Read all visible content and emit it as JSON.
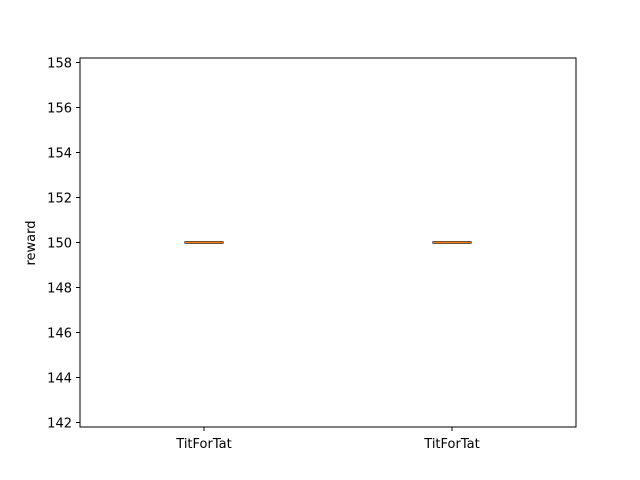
{
  "chart_data": {
    "type": "box",
    "title": "",
    "xlabel": "",
    "ylabel": "reward",
    "ylim": [
      141.8,
      158.2
    ],
    "yticks": [
      142,
      144,
      146,
      148,
      150,
      152,
      154,
      156,
      158
    ],
    "ytick_labels": [
      "142",
      "144",
      "146",
      "148",
      "150",
      "152",
      "154",
      "156",
      "158"
    ],
    "categories": [
      "TitForTat",
      "TitForTat"
    ],
    "boxes": [
      {
        "min": 150,
        "q1": 150,
        "median": 150,
        "q3": 150,
        "max": 150
      },
      {
        "min": 150,
        "q1": 150,
        "median": 150,
        "q3": 150,
        "max": 150
      }
    ],
    "grid": false,
    "colors": {
      "box": "#000000",
      "median": "#ff7f0e",
      "axis": "#000000"
    }
  }
}
